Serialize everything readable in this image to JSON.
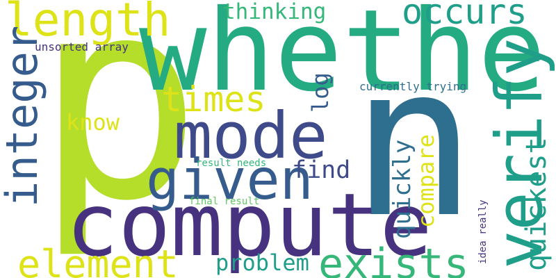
{
  "words": {
    "p": "p",
    "n": "n",
    "whether": "whether",
    "compute": "compute",
    "mode": "mode",
    "given": "given",
    "verify": "verify",
    "exists": "exists",
    "element": "element",
    "length": "length",
    "occurs": "occurs",
    "integer": "integer",
    "times": "times",
    "problem": "problem",
    "thinking": "thinking",
    "quickest": "quickest",
    "quickly": "quickly",
    "compare": "compare",
    "find": "find",
    "log": "log",
    "know": "know",
    "unsorted_array": "unsorted array",
    "currently_trying": "currently trying",
    "result_needs": "result needs",
    "final_result": "final result",
    "idea_really": "idea really"
  },
  "colors": {
    "dark_purple": "#46327e",
    "indigo": "#3e4a89",
    "slate_blue": "#365c8d",
    "blue_teal": "#2e6e8e",
    "teal": "#1f9e89",
    "green_teal": "#25ab82",
    "green": "#35b779",
    "light_green": "#5ec962",
    "lime": "#b5de2b",
    "yellow": "#dde318"
  }
}
